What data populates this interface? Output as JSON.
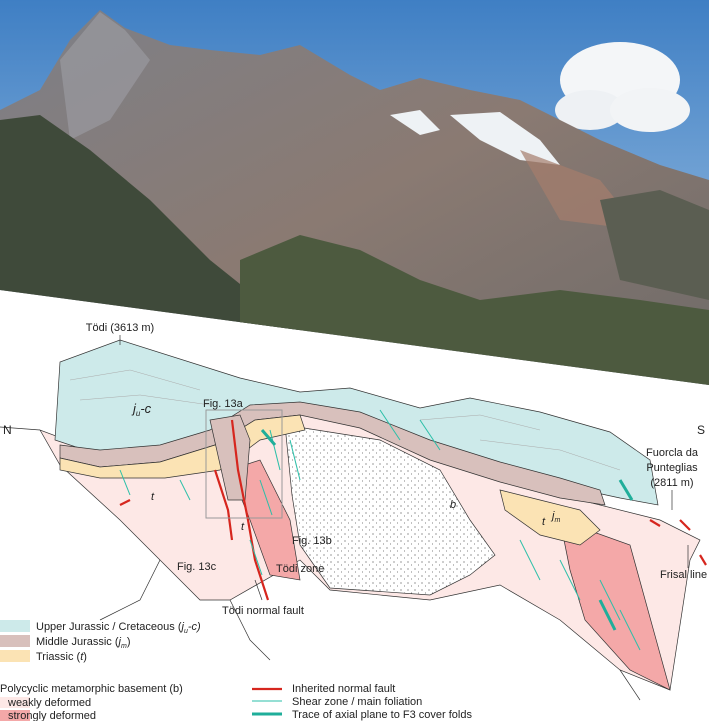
{
  "sketch": {
    "peak": "Tödi (3613 m)",
    "north": "N",
    "south": "S",
    "unit_juc": {
      "main": "j",
      "sub": "u",
      "tail": "-c"
    },
    "unit_jm": {
      "main": "j",
      "sub": "m"
    },
    "fig13a": "Fig. 13a",
    "fig13b": "Fig. 13b",
    "fig13c": "Fig. 13c",
    "triassic_marks": [
      "t",
      "t",
      "t"
    ],
    "basement_mark": "b",
    "pass": [
      "Fuorcla da",
      "Punteglias",
      "(2811 m)"
    ],
    "todi_zone": "Tödi zone",
    "todi_fault": "Tödi normal fault",
    "frisal": "Frisal line"
  },
  "legend": {
    "cover": [
      {
        "text": "Upper Jurassic / Cretaceous (",
        "main": "j",
        "sub": "u",
        "tail": "-c)"
      },
      {
        "text": "Middle Jurassic (",
        "main": "j",
        "sub": "m",
        "tail": ")"
      },
      {
        "text": "Triassic (",
        "main": "t",
        "tail": ")"
      }
    ],
    "basement_title": "Polycyclic metamorphic basement (b)",
    "basement": [
      "weakly deformed",
      "strongly deformed"
    ],
    "lines": [
      "Inherited normal fault",
      "Shear zone / main foliation",
      "Trace of axial plane to F3 cover folds"
    ]
  }
}
